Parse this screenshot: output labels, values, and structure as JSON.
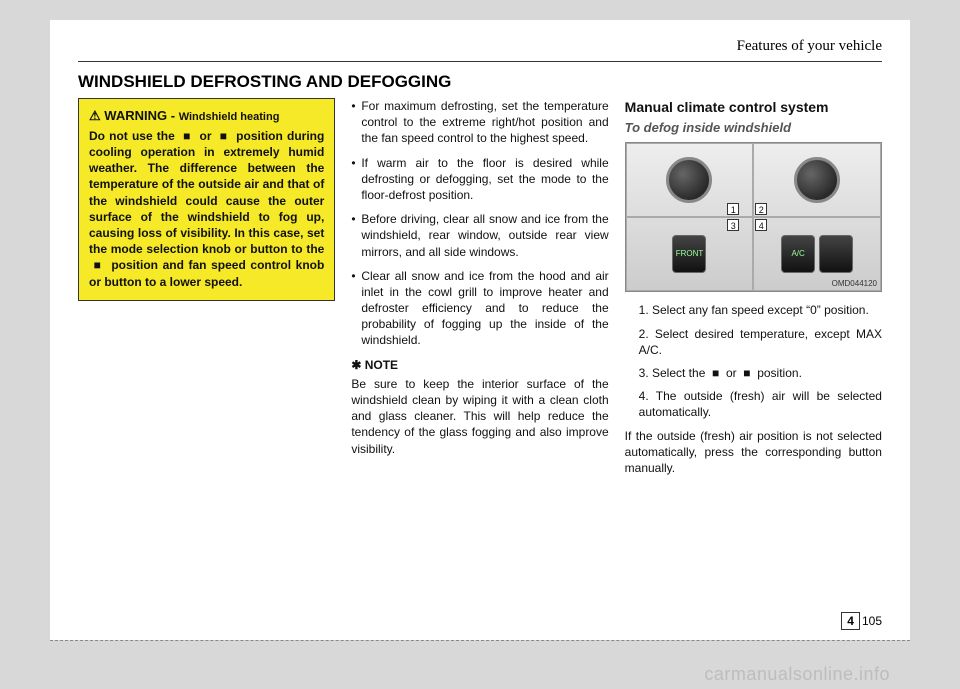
{
  "header": {
    "chapter": "Features of your vehicle"
  },
  "title": "WINDSHIELD DEFROSTING AND DEFOGGING",
  "warning": {
    "label": "WARNING -",
    "subject": "Windshield heating",
    "body": "Do not use the  ■  or  ■  position during cooling operation in extremely humid weather. The difference between the temperature of the outside air and that of the windshield could cause the outer surface of the windshield to fog up, causing loss of visibility. In this case, set the mode selection knob or button to the  ■  position and fan speed control knob or button to a lower speed."
  },
  "col2": {
    "bullets": [
      "For maximum defrosting, set the temperature control to the extreme right/hot position and the fan speed control to the highest speed.",
      "If warm air to the floor is desired while defrosting or defogging, set the mode to the floor-defrost position.",
      "Before driving, clear all snow and ice from the windshield, rear window, outside rear view mirrors, and all side windows.",
      "Clear all snow and ice from the hood and air inlet in the cowl grill to improve heater and defroster efficiency and to reduce the probability of fogging up the inside of the windshield."
    ],
    "note_title": "✱ NOTE",
    "note_body": "Be sure to keep the interior surface of the windshield clean by wiping it with a clean cloth and glass cleaner. This will help reduce the tendency of the glass fogging and also improve visibility."
  },
  "col3": {
    "heading": "Manual climate control system",
    "sub": "To defog inside windshield",
    "image_code": "OMD044120",
    "labels": {
      "q1": "1",
      "q2": "2",
      "q3": "3",
      "q4": "4"
    },
    "btn_front": "FRONT",
    "btn_ac": "A/C",
    "steps": [
      "1. Select any fan speed except “0” position.",
      "2. Select desired temperature, except MAX A/C.",
      "3. Select the  ■  or  ■  position.",
      "4. The outside (fresh) air will be selected automatically."
    ],
    "tail": "If the outside (fresh) air position is not selected automatically, press the corresponding button manually."
  },
  "footer": {
    "section": "4",
    "page": "105",
    "watermark": "carmanualsonline.info"
  }
}
